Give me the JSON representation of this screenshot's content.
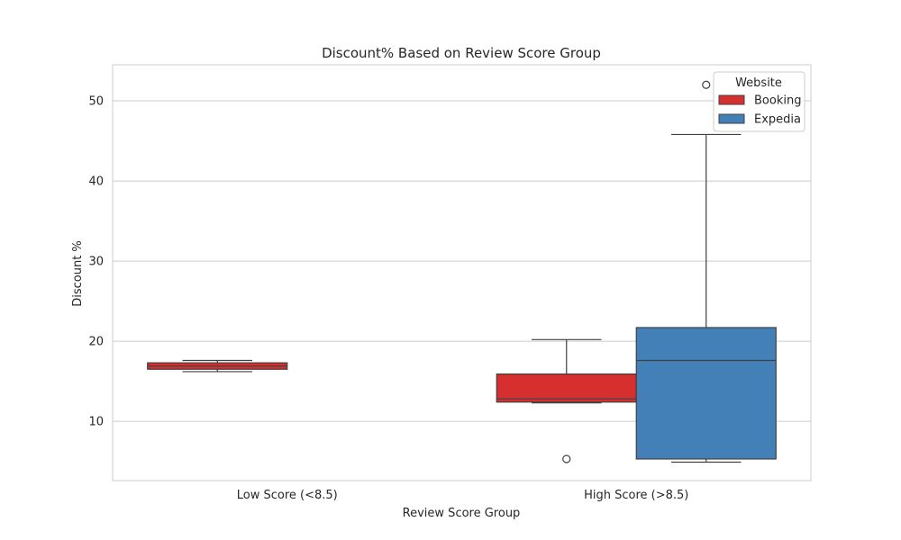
{
  "chart_data": {
    "type": "box",
    "title": "Discount% Based on Review Score Group",
    "xlabel": "Review Score Group",
    "ylabel": "Discount %",
    "categories": [
      "Low Score (<8.5)",
      "High Score (>8.5)"
    ],
    "ylim": [
      2.6,
      54.5
    ],
    "yticks": [
      10,
      20,
      30,
      40,
      50
    ],
    "grid": true,
    "legend": {
      "title": "Website",
      "position": "top-right"
    },
    "series": [
      {
        "name": "Booking",
        "color": "#d62f2f",
        "boxes": [
          {
            "category": "Low Score (<8.5)",
            "whisker_low": 16.2,
            "q1": 16.5,
            "median": 16.9,
            "q3": 17.3,
            "whisker_high": 17.6,
            "outliers": []
          },
          {
            "category": "High Score (>8.5)",
            "whisker_low": 12.3,
            "q1": 12.4,
            "median": 12.8,
            "q3": 15.9,
            "whisker_high": 20.2,
            "outliers": [
              5.3
            ]
          }
        ]
      },
      {
        "name": "Expedia",
        "color": "#4380b7",
        "boxes": [
          {
            "category": "High Score (>8.5)",
            "whisker_low": 4.9,
            "q1": 5.3,
            "median": 17.6,
            "q3": 21.7,
            "whisker_high": 45.8,
            "outliers": [
              52.0
            ]
          }
        ]
      }
    ]
  }
}
